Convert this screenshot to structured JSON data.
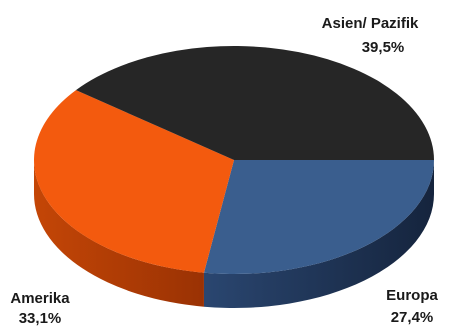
{
  "chart_data": {
    "type": "pie",
    "style": "3d",
    "slices": [
      {
        "label": "Asien/ Pazifik",
        "value": 39.5,
        "value_label": "39,5%",
        "color": "#262626",
        "side_color": "#141414"
      },
      {
        "label": "Europa",
        "value": 27.4,
        "value_label": "27,4%",
        "color": "#3a5e8e",
        "side_color": "#1c2f4d"
      },
      {
        "label": "Amerika",
        "value": 33.1,
        "value_label": "33,1%",
        "color": "#f35a0e",
        "side_color": "#b23d05"
      }
    ],
    "legend": "none"
  }
}
